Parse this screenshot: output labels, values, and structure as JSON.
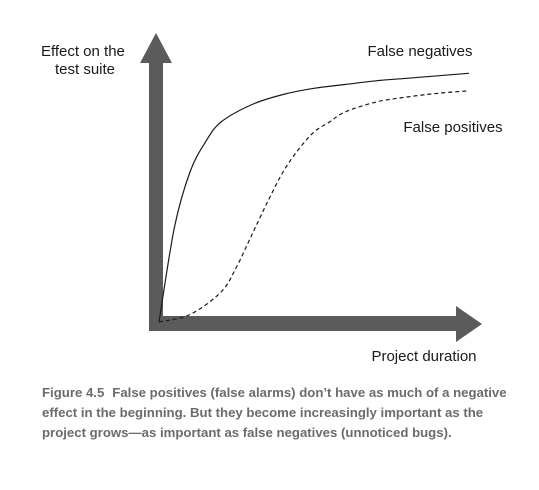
{
  "chart_data": {
    "type": "line",
    "ylabel_lines": [
      "Effect on the",
      "test suite"
    ],
    "xlabel": "Project duration",
    "x_ticks": [],
    "y_ticks": [],
    "xlim": [
      0,
      1
    ],
    "ylim": [
      0,
      1
    ],
    "grid": false,
    "legend": "inline labels",
    "series": [
      {
        "name": "False negatives",
        "style": "solid",
        "x": [
          0,
          0.05,
          0.1,
          0.15,
          0.2,
          0.3,
          0.4,
          0.5,
          0.6,
          0.7,
          0.8,
          0.9,
          1.0
        ],
        "y": [
          0,
          0.38,
          0.6,
          0.72,
          0.8,
          0.87,
          0.91,
          0.935,
          0.95,
          0.965,
          0.975,
          0.985,
          0.995
        ]
      },
      {
        "name": "False positives",
        "style": "dashed",
        "x": [
          0,
          0.1,
          0.2,
          0.25,
          0.3,
          0.35,
          0.4,
          0.45,
          0.5,
          0.55,
          0.6,
          0.7,
          0.8,
          0.9,
          1.0
        ],
        "y": [
          0,
          0.03,
          0.12,
          0.22,
          0.35,
          0.48,
          0.6,
          0.69,
          0.76,
          0.8,
          0.84,
          0.88,
          0.9,
          0.915,
          0.925
        ]
      }
    ],
    "colors": {
      "axis": "#5b5b5b",
      "line": "#1a1a1a",
      "caption": "#6b6b6b"
    }
  },
  "caption": {
    "label": "Figure 4.5",
    "text": "False positives (false alarms) don’t have as much of a negative effect in the beginning. But they become increasingly important as the project grows—as important as false negatives (unnoticed bugs)."
  }
}
